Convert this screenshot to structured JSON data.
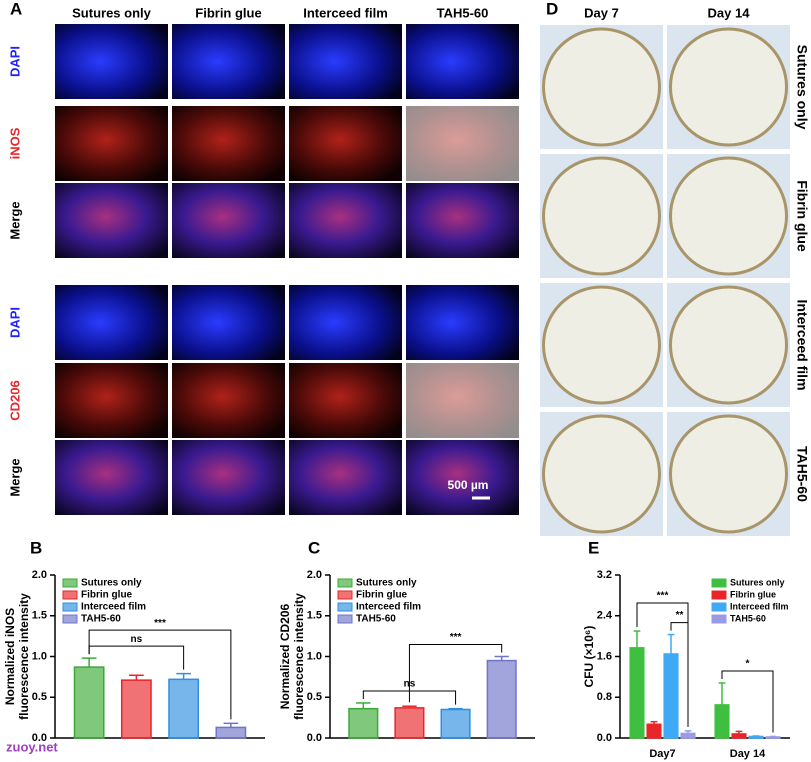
{
  "panel_labels": [
    "A",
    "B",
    "C",
    "D",
    "E"
  ],
  "panel_a": {
    "columns": [
      "Sutures only",
      "Fibrin glue",
      "Interceed film",
      "TAH5-60"
    ],
    "rows": [
      {
        "label": "DAPI",
        "color": "#1f1fff"
      },
      {
        "label": "iNOS",
        "color": "#e8262a"
      },
      {
        "label": "Merge",
        "color": "#000000"
      },
      {
        "label": "DAPI",
        "color": "#1f1fff"
      },
      {
        "label": "CD206",
        "color": "#e8262a"
      },
      {
        "label": "Merge",
        "color": "#000000"
      }
    ],
    "scale_bar": "500 µm"
  },
  "panel_d": {
    "columns": [
      "Day 7",
      "Day 14"
    ],
    "rows": [
      "Sutures only",
      "Fibrin glue",
      "Interceed film",
      "TAH5-60"
    ]
  },
  "watermark": "zuoy.net",
  "chart_data": [
    {
      "type": "bar",
      "ylabel": [
        "Normalized iNOS",
        "fluorescence intensity"
      ],
      "categories": [
        null
      ],
      "series": [
        {
          "name": "Sutures only",
          "color": "#3aaa35",
          "values": [
            0.87
          ],
          "errors": [
            0.11
          ]
        },
        {
          "name": "Fibrin glue",
          "color": "#e8262a",
          "values": [
            0.71
          ],
          "errors": [
            0.06
          ]
        },
        {
          "name": "Interceed film",
          "color": "#2e8fe0",
          "values": [
            0.72
          ],
          "errors": [
            0.07
          ]
        },
        {
          "name": "TAH5-60",
          "color": "#6f74c9",
          "values": [
            0.13
          ],
          "errors": [
            0.05
          ]
        }
      ],
      "ylim": [
        0,
        2
      ],
      "yticks": [
        {
          "value": 0,
          "label": "0.0"
        },
        0.5,
        {
          "value": 1,
          "label": "1.0"
        },
        1.5,
        {
          "value": 2,
          "label": "2.0"
        }
      ],
      "legend": "upper left",
      "annotations": [
        {
          "text": "ns",
          "category": 0,
          "from": 0,
          "to": 2
        },
        {
          "text": "***",
          "category": 0,
          "from": 0,
          "to": 3
        }
      ]
    },
    {
      "type": "bar",
      "ylabel": [
        "Normalized CD206",
        "fluorescence intensity"
      ],
      "categories": [
        null
      ],
      "series": [
        {
          "name": "Sutures only",
          "color": "#3aaa35",
          "values": [
            0.36
          ],
          "errors": [
            0.07
          ]
        },
        {
          "name": "Fibrin glue",
          "color": "#e8262a",
          "values": [
            0.37
          ],
          "errors": [
            0.02
          ]
        },
        {
          "name": "Interceed film",
          "color": "#2e8fe0",
          "values": [
            0.35
          ],
          "errors": [
            0.01
          ]
        },
        {
          "name": "TAH5-60",
          "color": "#6f74c9",
          "values": [
            0.95
          ],
          "errors": [
            0.05
          ]
        }
      ],
      "ylim": [
        0,
        2
      ],
      "yticks": [
        {
          "value": 0,
          "label": "0.0"
        },
        0.5,
        {
          "value": 1,
          "label": "1.0"
        },
        1.5,
        {
          "value": 2,
          "label": "2.0"
        }
      ],
      "legend": "upper left",
      "annotations": [
        {
          "text": "ns",
          "category": 0,
          "from": 0,
          "to": 2
        },
        {
          "text": "***",
          "category": 0,
          "from": 1,
          "to": 3
        }
      ]
    },
    {
      "type": "bar",
      "ylabel": [
        "CFU (×10⁶)"
      ],
      "categories": [
        "Day7",
        "Day 14"
      ],
      "series": [
        {
          "name": "Sutures only",
          "color": "#3fbf3f",
          "values": [
            1.77,
            0.65
          ],
          "errors": [
            0.33,
            0.43
          ]
        },
        {
          "name": "Fibrin glue",
          "color": "#e8262a",
          "values": [
            0.27,
            0.08
          ],
          "errors": [
            0.05,
            0.05
          ]
        },
        {
          "name": "Interceed film",
          "color": "#3fa9f5",
          "values": [
            1.65,
            0.03
          ],
          "errors": [
            0.38,
            0.01
          ]
        },
        {
          "name": "TAH5-60",
          "color": "#9a9ae6",
          "values": [
            0.09,
            0.02
          ],
          "errors": [
            0.05,
            0.01
          ]
        }
      ],
      "ylim": [
        0,
        3.2
      ],
      "yticks": [
        {
          "value": 0,
          "label": "0.0"
        },
        0.8,
        1.6,
        2.4,
        3.2
      ],
      "legend": "upper right",
      "annotations": [
        {
          "text": "***",
          "category": 0,
          "from": 0,
          "to": 3
        },
        {
          "text": "**",
          "category": 0,
          "from": 2,
          "to": 3
        },
        {
          "text": "*",
          "category": 1,
          "from": 0,
          "to": 3
        }
      ]
    }
  ]
}
